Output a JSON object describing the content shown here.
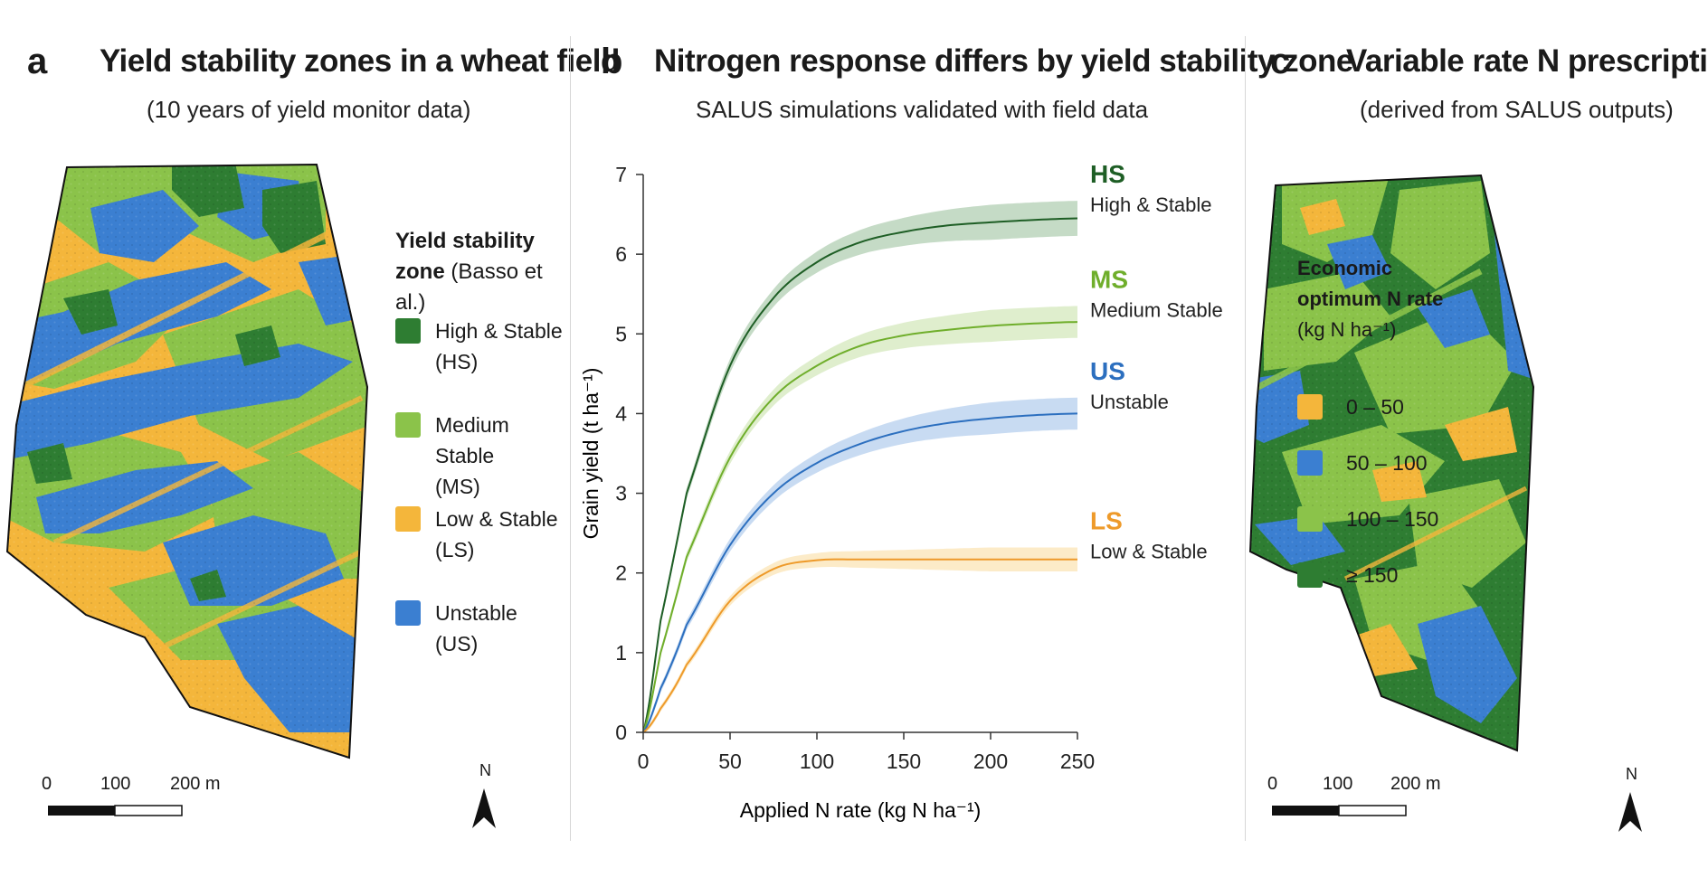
{
  "panel_a": {
    "letter": "a",
    "title": "Yield stability zones in a wheat field",
    "subtitle": "(10 years of yield monitor data)",
    "legend": {
      "title_bold_1": "Yield stability",
      "title_bold_2": "zone",
      "title_light": "(Basso et al.)",
      "items": [
        {
          "line1": "High & Stable",
          "line2": "(HS)",
          "color": "#2e7d32"
        },
        {
          "line1": "Medium Stable",
          "line2": "(MS)",
          "color": "#8bc34a"
        },
        {
          "line1": "Low & Stable",
          "line2": "(LS)",
          "color": "#f4b63b"
        },
        {
          "line1": "Unstable",
          "line2": "(US)",
          "color": "#3b7fd1"
        }
      ]
    },
    "scale": {
      "t0": "0",
      "t1": "100",
      "t2": "200 m"
    },
    "north": "N"
  },
  "panel_b": {
    "letter": "b",
    "title": "Nitrogen response differs by yield stability zone",
    "subtitle": "SALUS simulations validated with field data"
  },
  "panel_c": {
    "letter": "c",
    "title": "Variable rate N prescription",
    "subtitle": "(derived from SALUS outputs)",
    "legend": {
      "title_1": "Economic",
      "title_2": "optimum N rate",
      "title_3": "(kg N ha⁻¹)",
      "items": [
        {
          "label": "0 – 50",
          "color": "#f4b63b"
        },
        {
          "label": "50 – 100",
          "color": "#3b7fd1"
        },
        {
          "label": "100 – 150",
          "color": "#8bc34a"
        },
        {
          "label": "≥ 150",
          "color": "#2e7d32"
        }
      ]
    },
    "scale": {
      "t0": "0",
      "t1": "100",
      "t2": "200 m"
    },
    "north": "N"
  },
  "chart_data": {
    "type": "line",
    "title": "Nitrogen response differs by yield stability zone",
    "subtitle": "SALUS simulations validated with field data",
    "xlabel": "Applied N rate (kg N ha⁻¹)",
    "ylabel": "Grain yield (t ha⁻¹)",
    "xlim": [
      0,
      250
    ],
    "ylim": [
      0,
      7
    ],
    "x_ticks": [
      0,
      50,
      100,
      150,
      200,
      250
    ],
    "y_ticks": [
      0,
      1,
      2,
      3,
      4,
      5,
      6,
      7
    ],
    "grid": false,
    "legend": "inline-right",
    "x": [
      0,
      10,
      25,
      50,
      75,
      100,
      125,
      150,
      175,
      200,
      225,
      250
    ],
    "series": [
      {
        "code": "HS",
        "name": "High & Stable",
        "color": "#1e5e25",
        "band_color": "#2e7d32",
        "values": [
          0,
          1.4,
          3.0,
          4.6,
          5.45,
          5.9,
          6.15,
          6.28,
          6.36,
          6.4,
          6.43,
          6.45
        ],
        "band": 0.22
      },
      {
        "code": "MS",
        "name": "Medium Stable",
        "color": "#6fae2b",
        "band_color": "#8bc34a",
        "values": [
          0,
          1.0,
          2.2,
          3.45,
          4.2,
          4.6,
          4.85,
          4.98,
          5.05,
          5.1,
          5.13,
          5.15
        ],
        "band": 0.2
      },
      {
        "code": "US",
        "name": "Unstable",
        "color": "#2c6fbf",
        "band_color": "#3b7fd1",
        "values": [
          0,
          0.55,
          1.35,
          2.35,
          3.0,
          3.38,
          3.62,
          3.78,
          3.88,
          3.94,
          3.98,
          4.0
        ],
        "band": 0.2
      },
      {
        "code": "LS",
        "name": "Low & Stable",
        "color": "#ee9a2a",
        "band_color": "#f4b63b",
        "values": [
          0,
          0.3,
          0.85,
          1.65,
          2.05,
          2.16,
          2.17,
          2.17,
          2.17,
          2.17,
          2.17,
          2.17
        ],
        "band": 0.15
      }
    ]
  }
}
